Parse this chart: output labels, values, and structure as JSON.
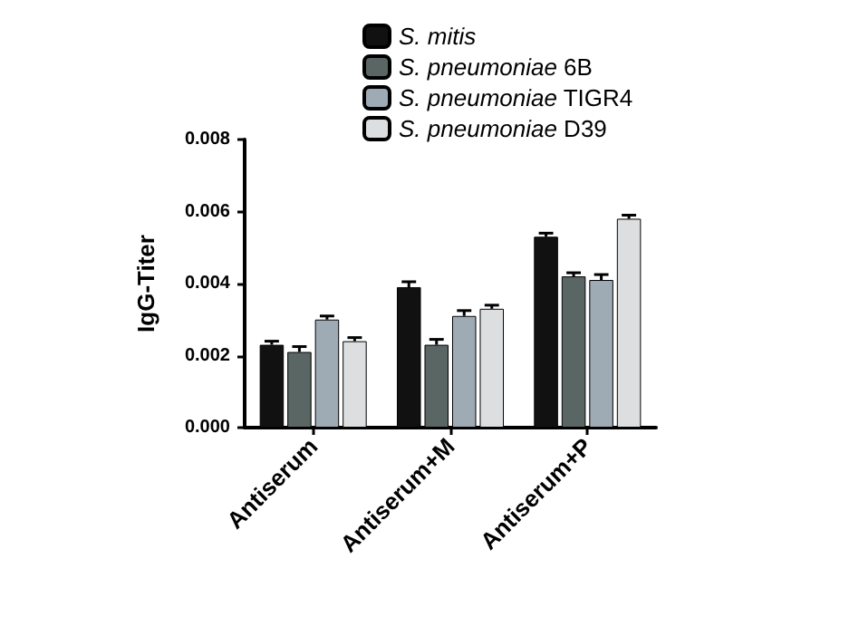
{
  "chart_data": {
    "type": "bar",
    "ylabel": "IgG-Titer",
    "categories": [
      "Antiserum",
      "Antiserum+M",
      "Antiserum+P"
    ],
    "series": [
      {
        "name": "S. mitis",
        "color": "#111111",
        "values": [
          0.0023,
          0.0039,
          0.0053
        ],
        "errors": [
          0.0001,
          0.00015,
          0.0001
        ]
      },
      {
        "name": "S. pneumoniae 6B",
        "color": "#5a6664",
        "values": [
          0.0021,
          0.0023,
          0.0042
        ],
        "errors": [
          0.00015,
          0.00015,
          0.0001
        ]
      },
      {
        "name": "S. pneumoniae TIGR4",
        "color": "#9eaab4",
        "values": [
          0.003,
          0.0031,
          0.0041
        ],
        "errors": [
          0.0001,
          0.00015,
          0.00015
        ]
      },
      {
        "name": "S. pneumoniae D39",
        "color": "#dcdedf",
        "values": [
          0.0024,
          0.0033,
          0.0058
        ],
        "errors": [
          0.0001,
          0.0001,
          0.0001
        ]
      }
    ],
    "ylim": [
      0,
      0.008
    ],
    "yticks": [
      {
        "value": 0,
        "label": "0.000"
      },
      {
        "value": 0.002,
        "label": "0.002"
      },
      {
        "value": 0.004,
        "label": "0.004"
      },
      {
        "value": 0.006,
        "label": "0.006"
      },
      {
        "value": 0.008,
        "label": "0.008"
      }
    ],
    "grid": false,
    "legend": "top"
  }
}
